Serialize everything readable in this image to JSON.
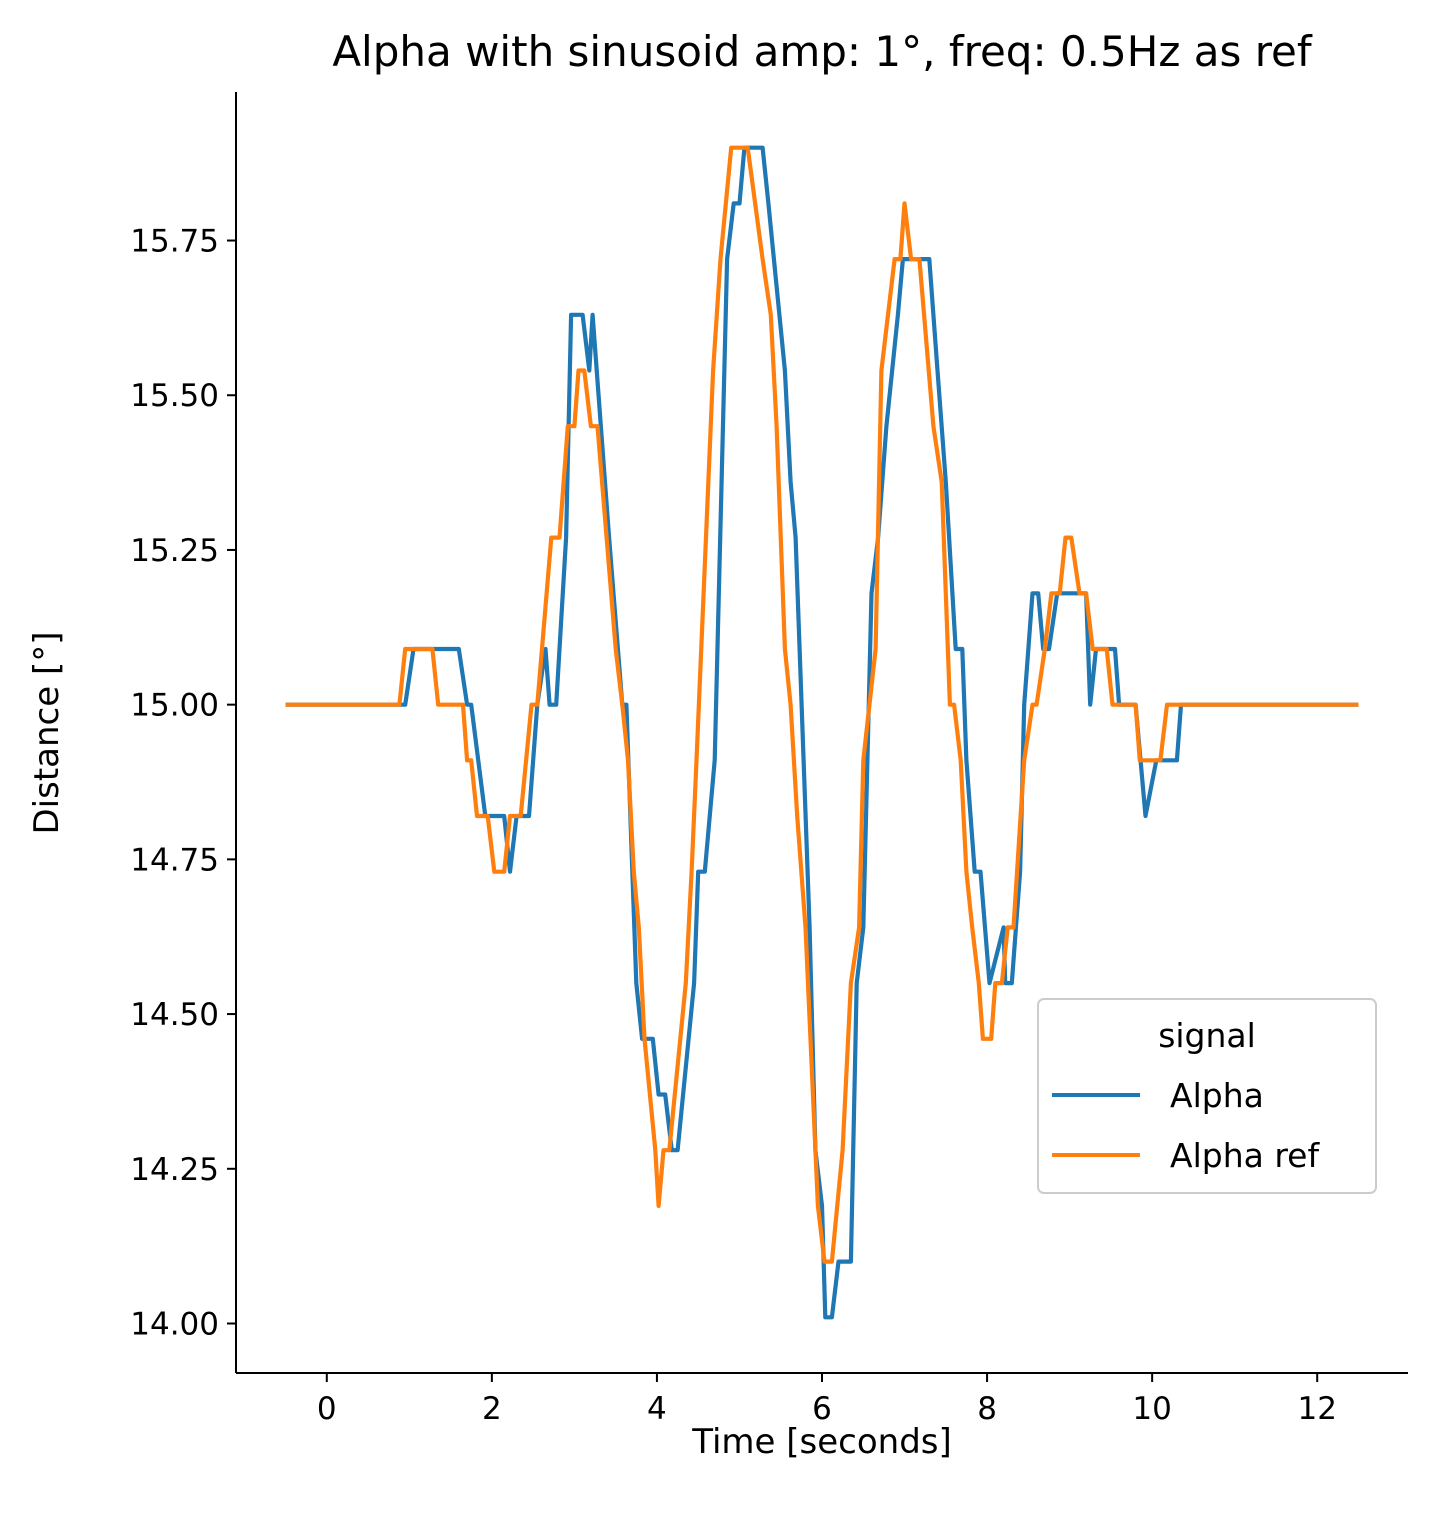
{
  "chart_data": {
    "type": "line",
    "title": "Alpha with sinusoid amp: 1°, freq: 0.5Hz as ref",
    "xlabel": "Time [seconds]",
    "ylabel": "Distance [°]",
    "xlim": [
      -1.1,
      13.1
    ],
    "ylim": [
      13.92,
      15.99
    ],
    "xticks": [
      0,
      2,
      4,
      6,
      8,
      10,
      12
    ],
    "xtick_labels": [
      "0",
      "2",
      "4",
      "6",
      "8",
      "10",
      "12"
    ],
    "yticks": [
      14.0,
      14.25,
      14.5,
      14.75,
      15.0,
      15.25,
      15.5,
      15.75
    ],
    "ytick_labels": [
      "14.00",
      "14.25",
      "14.50",
      "14.75",
      "15.00",
      "15.25",
      "15.50",
      "15.75"
    ],
    "grid": false,
    "legend": {
      "title": "signal",
      "placement": "lower right"
    },
    "series": [
      {
        "name": "Alpha",
        "color": "#1f77b4",
        "points": [
          [
            -0.5,
            15.0
          ],
          [
            0.95,
            15.0
          ],
          [
            1.05,
            15.09
          ],
          [
            1.6,
            15.09
          ],
          [
            1.7,
            15.0
          ],
          [
            1.75,
            15.0
          ],
          [
            1.92,
            14.82
          ],
          [
            2.15,
            14.82
          ],
          [
            2.22,
            14.73
          ],
          [
            2.3,
            14.82
          ],
          [
            2.45,
            14.82
          ],
          [
            2.55,
            15.0
          ],
          [
            2.65,
            15.09
          ],
          [
            2.7,
            15.0
          ],
          [
            2.78,
            15.0
          ],
          [
            2.9,
            15.27
          ],
          [
            2.96,
            15.63
          ],
          [
            3.1,
            15.63
          ],
          [
            3.18,
            15.54
          ],
          [
            3.22,
            15.63
          ],
          [
            3.42,
            15.27
          ],
          [
            3.58,
            15.0
          ],
          [
            3.63,
            15.0
          ],
          [
            3.75,
            14.55
          ],
          [
            3.82,
            14.46
          ],
          [
            3.95,
            14.46
          ],
          [
            4.02,
            14.37
          ],
          [
            4.1,
            14.37
          ],
          [
            4.18,
            14.28
          ],
          [
            4.25,
            14.28
          ],
          [
            4.45,
            14.55
          ],
          [
            4.5,
            14.73
          ],
          [
            4.58,
            14.73
          ],
          [
            4.7,
            14.91
          ],
          [
            4.85,
            15.72
          ],
          [
            4.93,
            15.81
          ],
          [
            5.0,
            15.81
          ],
          [
            5.06,
            15.9
          ],
          [
            5.28,
            15.9
          ],
          [
            5.35,
            15.81
          ],
          [
            5.55,
            15.54
          ],
          [
            5.62,
            15.36
          ],
          [
            5.68,
            15.27
          ],
          [
            5.85,
            14.64
          ],
          [
            5.92,
            14.28
          ],
          [
            6.0,
            14.19
          ],
          [
            6.04,
            14.01
          ],
          [
            6.12,
            14.01
          ],
          [
            6.2,
            14.1
          ],
          [
            6.35,
            14.1
          ],
          [
            6.42,
            14.55
          ],
          [
            6.5,
            14.64
          ],
          [
            6.6,
            15.18
          ],
          [
            6.68,
            15.27
          ],
          [
            6.78,
            15.45
          ],
          [
            6.92,
            15.63
          ],
          [
            6.98,
            15.72
          ],
          [
            7.3,
            15.72
          ],
          [
            7.4,
            15.54
          ],
          [
            7.5,
            15.36
          ],
          [
            7.58,
            15.18
          ],
          [
            7.62,
            15.09
          ],
          [
            7.7,
            15.09
          ],
          [
            7.75,
            14.91
          ],
          [
            7.85,
            14.73
          ],
          [
            7.92,
            14.73
          ],
          [
            8.03,
            14.55
          ],
          [
            8.2,
            14.64
          ],
          [
            8.22,
            14.55
          ],
          [
            8.3,
            14.55
          ],
          [
            8.4,
            14.73
          ],
          [
            8.45,
            15.0
          ],
          [
            8.55,
            15.18
          ],
          [
            8.62,
            15.18
          ],
          [
            8.68,
            15.09
          ],
          [
            8.75,
            15.09
          ],
          [
            8.85,
            15.18
          ],
          [
            9.2,
            15.18
          ],
          [
            9.25,
            15.0
          ],
          [
            9.32,
            15.09
          ],
          [
            9.55,
            15.09
          ],
          [
            9.6,
            15.0
          ],
          [
            9.8,
            15.0
          ],
          [
            9.92,
            14.82
          ],
          [
            10.05,
            14.91
          ],
          [
            10.3,
            14.91
          ],
          [
            10.35,
            15.0
          ],
          [
            12.5,
            15.0
          ]
        ]
      },
      {
        "name": "Alpha ref",
        "color": "#ff7f0e",
        "points": [
          [
            -0.5,
            15.0
          ],
          [
            0.88,
            15.0
          ],
          [
            0.95,
            15.09
          ],
          [
            1.28,
            15.09
          ],
          [
            1.35,
            15.0
          ],
          [
            1.65,
            15.0
          ],
          [
            1.7,
            14.91
          ],
          [
            1.75,
            14.91
          ],
          [
            1.82,
            14.82
          ],
          [
            1.95,
            14.82
          ],
          [
            2.03,
            14.73
          ],
          [
            2.15,
            14.73
          ],
          [
            2.22,
            14.82
          ],
          [
            2.35,
            14.82
          ],
          [
            2.48,
            15.0
          ],
          [
            2.55,
            15.0
          ],
          [
            2.72,
            15.27
          ],
          [
            2.82,
            15.27
          ],
          [
            2.92,
            15.45
          ],
          [
            3.0,
            15.45
          ],
          [
            3.05,
            15.54
          ],
          [
            3.12,
            15.54
          ],
          [
            3.2,
            15.45
          ],
          [
            3.28,
            15.45
          ],
          [
            3.5,
            15.09
          ],
          [
            3.58,
            15.0
          ],
          [
            3.65,
            14.91
          ],
          [
            3.72,
            14.73
          ],
          [
            3.78,
            14.64
          ],
          [
            3.85,
            14.46
          ],
          [
            3.98,
            14.28
          ],
          [
            4.02,
            14.19
          ],
          [
            4.08,
            14.28
          ],
          [
            4.15,
            14.28
          ],
          [
            4.35,
            14.55
          ],
          [
            4.42,
            14.73
          ],
          [
            4.48,
            14.91
          ],
          [
            4.68,
            15.54
          ],
          [
            4.77,
            15.72
          ],
          [
            4.9,
            15.9
          ],
          [
            5.1,
            15.9
          ],
          [
            5.28,
            15.72
          ],
          [
            5.38,
            15.63
          ],
          [
            5.45,
            15.45
          ],
          [
            5.55,
            15.09
          ],
          [
            5.62,
            15.0
          ],
          [
            5.7,
            14.82
          ],
          [
            5.8,
            14.64
          ],
          [
            5.95,
            14.19
          ],
          [
            6.03,
            14.1
          ],
          [
            6.12,
            14.1
          ],
          [
            6.25,
            14.28
          ],
          [
            6.35,
            14.55
          ],
          [
            6.45,
            14.64
          ],
          [
            6.5,
            14.91
          ],
          [
            6.65,
            15.09
          ],
          [
            6.72,
            15.54
          ],
          [
            6.8,
            15.63
          ],
          [
            6.88,
            15.72
          ],
          [
            6.95,
            15.72
          ],
          [
            7.0,
            15.81
          ],
          [
            7.08,
            15.72
          ],
          [
            7.18,
            15.72
          ],
          [
            7.35,
            15.45
          ],
          [
            7.45,
            15.36
          ],
          [
            7.55,
            15.0
          ],
          [
            7.6,
            15.0
          ],
          [
            7.68,
            14.91
          ],
          [
            7.75,
            14.73
          ],
          [
            7.82,
            14.64
          ],
          [
            7.9,
            14.55
          ],
          [
            7.95,
            14.46
          ],
          [
            8.05,
            14.46
          ],
          [
            8.1,
            14.55
          ],
          [
            8.18,
            14.55
          ],
          [
            8.25,
            14.64
          ],
          [
            8.32,
            14.64
          ],
          [
            8.45,
            14.91
          ],
          [
            8.55,
            15.0
          ],
          [
            8.6,
            15.0
          ],
          [
            8.7,
            15.09
          ],
          [
            8.78,
            15.18
          ],
          [
            8.88,
            15.18
          ],
          [
            8.95,
            15.27
          ],
          [
            9.02,
            15.27
          ],
          [
            9.12,
            15.18
          ],
          [
            9.2,
            15.18
          ],
          [
            9.28,
            15.09
          ],
          [
            9.45,
            15.09
          ],
          [
            9.52,
            15.0
          ],
          [
            9.8,
            15.0
          ],
          [
            9.85,
            14.91
          ],
          [
            10.1,
            14.91
          ],
          [
            10.18,
            15.0
          ],
          [
            12.5,
            15.0
          ]
        ]
      }
    ]
  }
}
